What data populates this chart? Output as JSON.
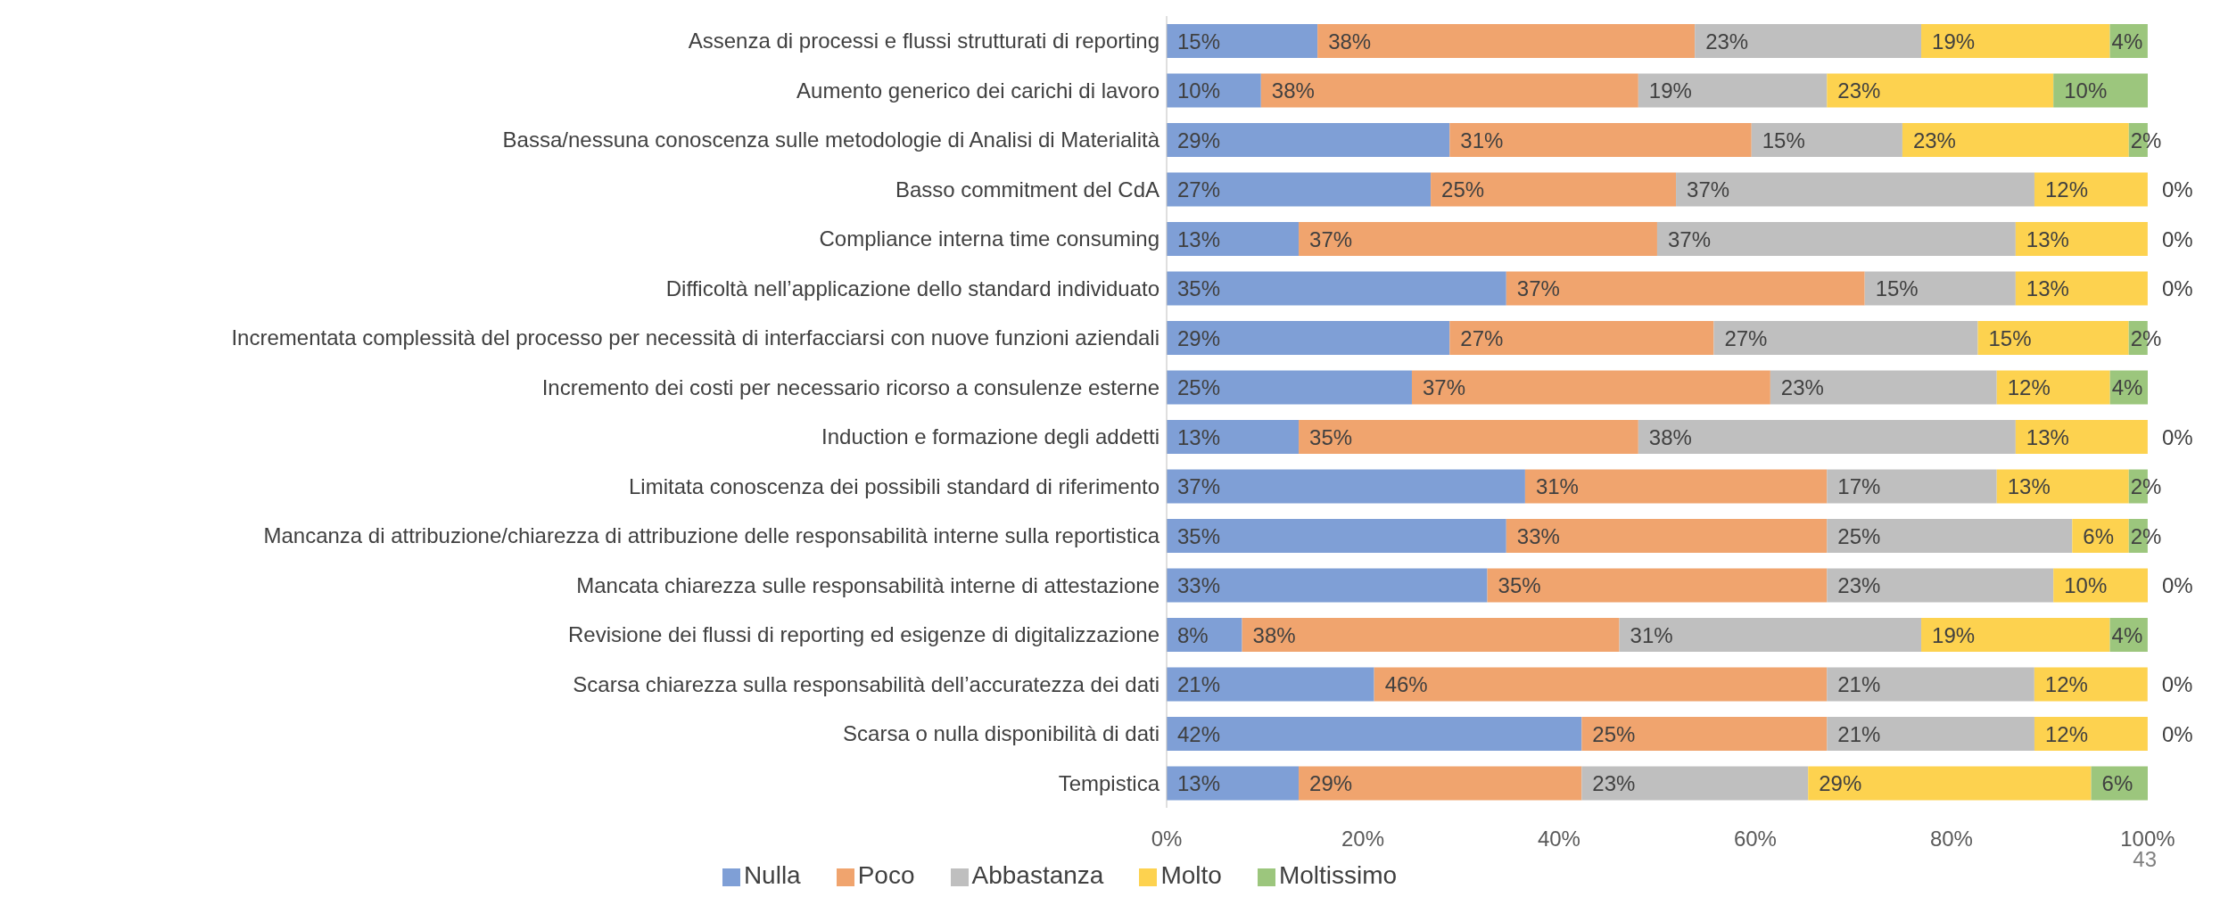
{
  "chart_data": {
    "type": "bar",
    "orientation": "horizontal",
    "stacked": true,
    "categories": [
      "Assenza di processi e flussi strutturati di reporting",
      "Aumento generico dei carichi di lavoro",
      "Bassa/nessuna conoscenza sulle metodologie di Analisi di Materialità",
      "Basso commitment del CdA",
      "Compliance interna time consuming",
      "Difficoltà nell’applicazione dello standard individuato",
      "Incrementata complessità del processo per necessità di interfacciarsi con nuove funzioni aziendali",
      "Incremento dei costi per necessario ricorso a consulenze esterne",
      "Induction e formazione degli addetti",
      "Limitata conoscenza dei possibili standard di riferimento",
      "Mancanza di attribuzione/chiarezza di attribuzione delle responsabilità interne sulla reportistica",
      "Mancata chiarezza sulle responsabilità interne di attestazione",
      "Revisione dei flussi di reporting ed esigenze di digitalizzazione",
      "Scarsa chiarezza sulla responsabilità dell’accuratezza dei dati",
      "Scarsa o nulla disponibilità di dati",
      "Tempistica"
    ],
    "series": [
      {
        "name": "Nulla",
        "color": "#7f9fd6",
        "values": [
          15.38,
          9.62,
          28.85,
          26.92,
          13.46,
          34.62,
          28.85,
          25.0,
          13.46,
          36.54,
          34.62,
          32.69,
          7.69,
          21.15,
          42.31,
          13.46
        ],
        "value_labels": [
          "15%",
          "10%",
          "29%",
          "27%",
          "13%",
          "35%",
          "29%",
          "25%",
          "13%",
          "37%",
          "35%",
          "33%",
          "8%",
          "21%",
          "42%",
          "13%"
        ]
      },
      {
        "name": "Poco",
        "color": "#f0a46e",
        "values": [
          38.46,
          38.46,
          30.77,
          25.0,
          36.54,
          36.54,
          26.92,
          36.54,
          34.62,
          30.77,
          32.69,
          34.62,
          38.46,
          46.15,
          25.0,
          28.85
        ],
        "value_labels": [
          "38%",
          "38%",
          "31%",
          "25%",
          "37%",
          "37%",
          "27%",
          "37%",
          "35%",
          "31%",
          "33%",
          "35%",
          "38%",
          "46%",
          "25%",
          "29%"
        ]
      },
      {
        "name": "Abbastanza",
        "color": "#bfbfbf",
        "values": [
          23.08,
          19.23,
          15.38,
          36.54,
          36.54,
          15.38,
          26.92,
          23.08,
          38.46,
          17.31,
          25.0,
          23.08,
          30.77,
          21.15,
          21.15,
          23.08
        ],
        "value_labels": [
          "23%",
          "19%",
          "15%",
          "37%",
          "37%",
          "15%",
          "27%",
          "23%",
          "38%",
          "17%",
          "25%",
          "23%",
          "31%",
          "21%",
          "21%",
          "23%"
        ]
      },
      {
        "name": "Molto",
        "color": "#fdd24f",
        "values": [
          19.23,
          23.08,
          23.08,
          11.54,
          13.46,
          13.46,
          15.38,
          11.54,
          13.46,
          13.46,
          5.77,
          9.62,
          19.23,
          11.54,
          11.54,
          28.85
        ],
        "value_labels": [
          "19%",
          "23%",
          "23%",
          "12%",
          "13%",
          "13%",
          "15%",
          "12%",
          "13%",
          "13%",
          "6%",
          "10%",
          "19%",
          "12%",
          "12%",
          "29%"
        ]
      },
      {
        "name": "Moltissimo",
        "color": "#9cc67d",
        "values": [
          3.85,
          9.62,
          1.92,
          0,
          0,
          0,
          1.92,
          3.85,
          0,
          1.92,
          1.92,
          0,
          3.85,
          0,
          0,
          5.77
        ],
        "value_labels": [
          "4%",
          "10%",
          "2%",
          "0%",
          "0%",
          "0%",
          "2%",
          "4%",
          "0%",
          "2%",
          "2%",
          "0%",
          "4%",
          "0%",
          "0%",
          "6%"
        ]
      }
    ],
    "xlim": [
      0,
      100
    ],
    "xticks": [
      {
        "value": 0,
        "label": "0%"
      },
      {
        "value": 20,
        "label": "20%"
      },
      {
        "value": 40,
        "label": "40%"
      },
      {
        "value": 60,
        "label": "60%"
      },
      {
        "value": 80,
        "label": "80%"
      },
      {
        "value": 100,
        "label": "100%"
      }
    ],
    "grid": false,
    "legend": "bottom",
    "annotations": [
      "43"
    ]
  }
}
